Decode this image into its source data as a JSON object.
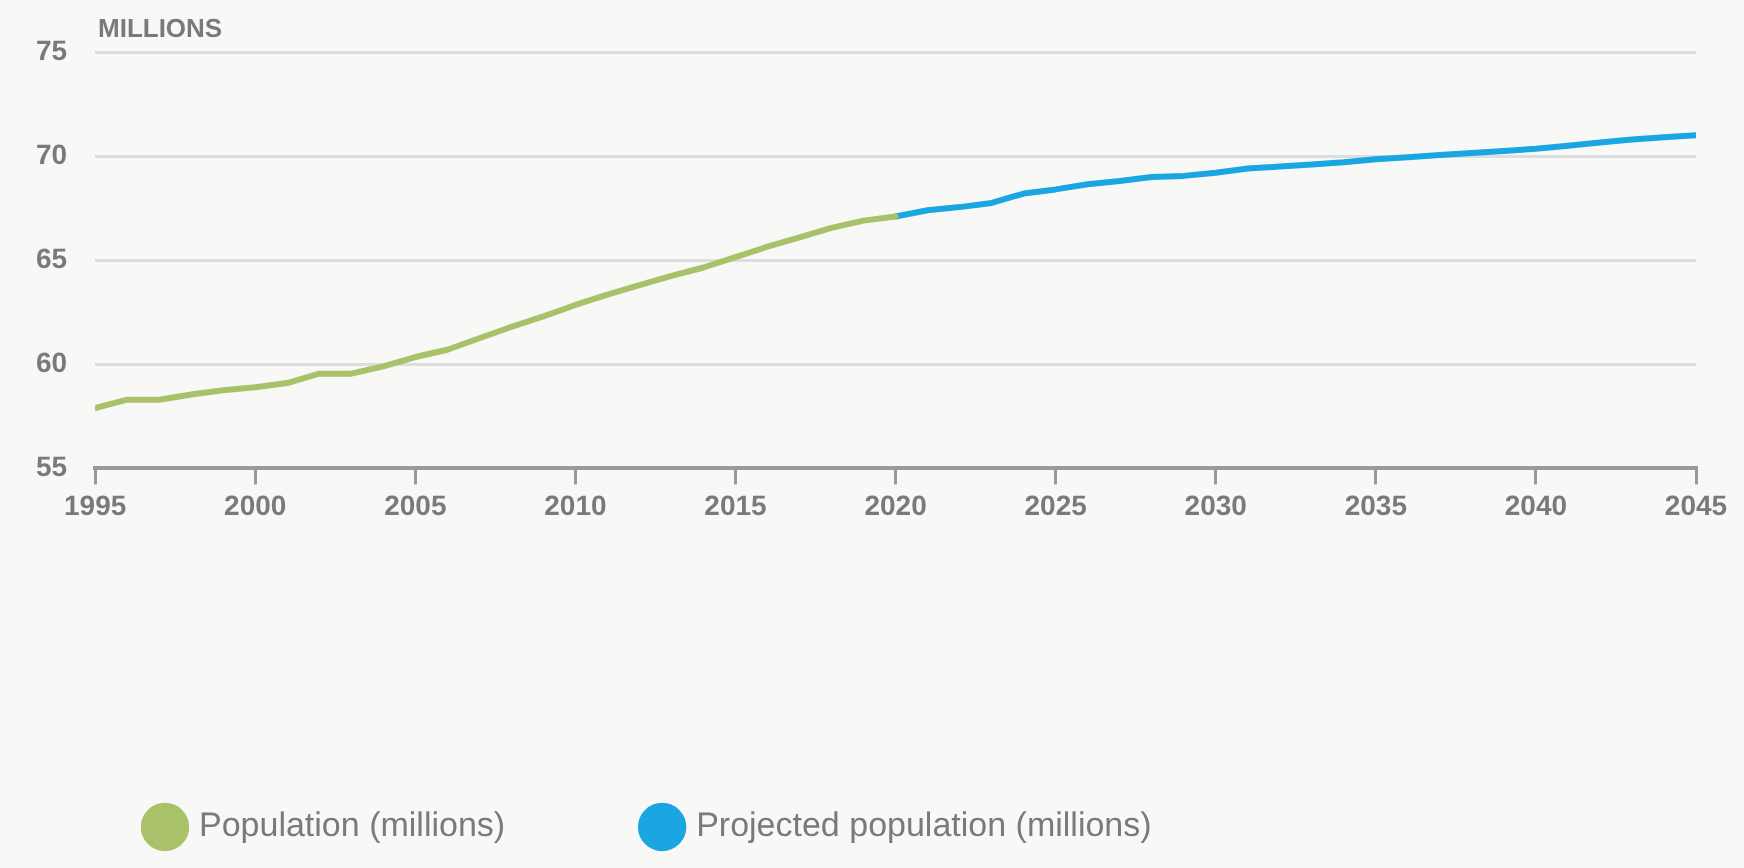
{
  "chart_data": {
    "type": "line",
    "ylabel": "MILLIONS",
    "xlim": [
      1995,
      2045
    ],
    "xticks": [
      1995,
      2000,
      2005,
      2010,
      2015,
      2020,
      2025,
      2030,
      2035,
      2040,
      2045
    ],
    "ylim": [
      55,
      75
    ],
    "yticks": [
      55,
      60,
      65,
      70,
      75
    ],
    "grid": "y",
    "legend": "bottom left",
    "marker": "none",
    "line_style": "solid",
    "series": [
      {
        "name": "Population (millions)",
        "color": "#a9c26a",
        "x": [
          1995,
          1996,
          1997,
          1998,
          1999,
          2000,
          2001,
          2002,
          2003,
          2004,
          2005,
          2006,
          2007,
          2008,
          2009,
          2010,
          2011,
          2012,
          2013,
          2014,
          2015,
          2016,
          2017,
          2018,
          2019,
          2020
        ],
        "values": [
          57.9,
          58.3,
          58.3,
          58.55,
          58.75,
          58.9,
          59.1,
          59.55,
          59.55,
          59.9,
          60.35,
          60.7,
          61.25,
          61.8,
          62.3,
          62.85,
          63.35,
          63.8,
          64.25,
          64.65,
          65.15,
          65.65,
          66.1,
          66.55,
          66.9,
          67.1
        ]
      },
      {
        "name": "Projected population (millions)",
        "color": "#1aa7e1",
        "x": [
          2020,
          2021,
          2022,
          2023,
          2024,
          2025,
          2026,
          2027,
          2028,
          2029,
          2030,
          2031,
          2032,
          2033,
          2034,
          2035,
          2036,
          2037,
          2038,
          2039,
          2040,
          2041,
          2042,
          2043,
          2044,
          2045
        ],
        "values": [
          67.1,
          67.4,
          67.55,
          67.75,
          68.2,
          68.4,
          68.65,
          68.8,
          69.0,
          69.05,
          69.2,
          69.4,
          69.5,
          69.6,
          69.7,
          69.85,
          69.95,
          70.05,
          70.15,
          70.25,
          70.35,
          70.5,
          70.65,
          70.8,
          70.9,
          71.0
        ]
      }
    ]
  }
}
